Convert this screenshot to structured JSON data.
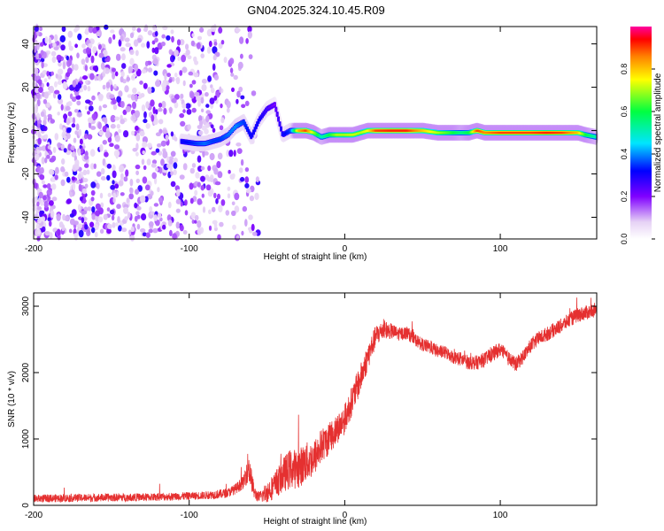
{
  "figure": {
    "title": "GN04.2025.324.10.45.R09"
  },
  "chart_data": [
    {
      "type": "heatmap",
      "title": "GN04.2025.324.10.45.R09",
      "xlabel": "Height of straight line (km)",
      "ylabel": "Frequency (Hz)",
      "xlim": [
        -200,
        162
      ],
      "ylim": [
        -50,
        48
      ],
      "xticks": [
        -200,
        -100,
        0,
        100
      ],
      "xtick_labels": [
        "-200",
        "-100",
        "0",
        "100"
      ],
      "yticks": [
        -40,
        -20,
        0,
        20,
        40
      ],
      "ytick_labels": [
        "-40",
        "-20",
        "0",
        "20",
        "40"
      ],
      "colorbar": {
        "label": "Normalized spectral amplitude",
        "range": [
          0,
          1
        ],
        "ticks": [
          0.0,
          0.2,
          0.4,
          0.6,
          0.8
        ],
        "tick_labels": [
          "0.0",
          "0.2",
          "0.4",
          "0.6",
          "0.8"
        ],
        "colors": [
          "#ffffff",
          "#e6d2f5",
          "#8000ff",
          "#0000ff",
          "#00e5ff",
          "#00ff40",
          "#ffff00",
          "#ff8000",
          "#ff0000",
          "#ff00a0"
        ]
      },
      "noise_region": {
        "x_from": -200,
        "x_to": -55,
        "freq_from": -50,
        "freq_to": 48,
        "level": 0.15
      },
      "ridge": {
        "x": [
          -105,
          -95,
          -90,
          -85,
          -80,
          -75,
          -70,
          -65,
          -60,
          -55,
          -50,
          -45,
          -40,
          -35,
          -30,
          -25,
          -20,
          -15,
          -10,
          -5,
          0,
          5,
          10,
          15,
          20,
          30,
          40,
          50,
          60,
          70,
          75,
          80,
          85,
          90,
          100,
          110,
          120,
          130,
          140,
          150,
          155,
          162
        ],
        "freq": [
          -5,
          -6,
          -6,
          -5,
          -4,
          -2,
          2,
          4,
          -3,
          5,
          10,
          12,
          -2,
          0,
          0,
          0,
          -1,
          -3,
          -2,
          -2,
          -2,
          -2,
          -1,
          0,
          0,
          0,
          0,
          0,
          -1,
          -1,
          -1,
          -1,
          0,
          -1,
          -1,
          -1,
          -1,
          -1,
          -1,
          -1,
          -2,
          -3
        ],
        "amplitude": [
          0.3,
          0.35,
          0.38,
          0.35,
          0.35,
          0.38,
          0.4,
          0.35,
          0.3,
          0.3,
          0.25,
          0.2,
          0.3,
          0.35,
          0.8,
          0.9,
          0.7,
          0.5,
          0.6,
          0.7,
          0.7,
          0.72,
          0.7,
          0.75,
          0.9,
          0.92,
          0.92,
          0.8,
          0.7,
          0.6,
          0.55,
          0.6,
          0.9,
          0.85,
          0.9,
          0.9,
          0.9,
          0.92,
          0.9,
          0.8,
          0.6,
          0.5
        ]
      }
    },
    {
      "type": "line",
      "title": "",
      "xlabel": "Height of straight line (km)",
      "ylabel": "SNR (10 * v/v)",
      "xlim": [
        -200,
        162
      ],
      "ylim": [
        0,
        3200
      ],
      "xticks": [
        -200,
        -100,
        0,
        100
      ],
      "xtick_labels": [
        "-200",
        "-100",
        "0",
        "100"
      ],
      "yticks": [
        0,
        1000,
        2000,
        3000
      ],
      "ytick_labels": [
        "0",
        "1000",
        "2000",
        "3000"
      ],
      "series": [
        {
          "name": "SNR",
          "color": "#e53030",
          "x": [
            -200,
            -180,
            -160,
            -140,
            -120,
            -100,
            -90,
            -80,
            -75,
            -70,
            -65,
            -62,
            -58,
            -55,
            -50,
            -45,
            -40,
            -35,
            -30,
            -25,
            -20,
            -15,
            -10,
            -5,
            0,
            5,
            10,
            15,
            20,
            25,
            30,
            35,
            40,
            45,
            50,
            55,
            60,
            65,
            70,
            75,
            80,
            85,
            90,
            95,
            100,
            105,
            110,
            115,
            120,
            125,
            130,
            135,
            140,
            145,
            150,
            155,
            162
          ],
          "y": [
            100,
            110,
            115,
            120,
            125,
            140,
            150,
            170,
            190,
            250,
            350,
            600,
            180,
            120,
            200,
            300,
            450,
            550,
            550,
            650,
            700,
            900,
            1000,
            1150,
            1300,
            1600,
            1900,
            2250,
            2550,
            2650,
            2620,
            2580,
            2600,
            2500,
            2420,
            2380,
            2320,
            2300,
            2230,
            2200,
            2150,
            2150,
            2200,
            2280,
            2350,
            2220,
            2120,
            2250,
            2420,
            2520,
            2580,
            2650,
            2720,
            2800,
            2870,
            2900,
            2950
          ],
          "noise_amplitude": [
            60,
            60,
            60,
            60,
            60,
            60,
            60,
            70,
            70,
            80,
            100,
            250,
            100,
            80,
            160,
            200,
            260,
            300,
            300,
            300,
            280,
            260,
            240,
            230,
            230,
            230,
            220,
            200,
            170,
            140,
            120,
            100,
            100,
            100,
            100,
            100,
            100,
            100,
            100,
            110,
            110,
            110,
            110,
            110,
            110,
            110,
            110,
            110,
            110,
            110,
            110,
            110,
            110,
            110,
            110,
            110,
            110
          ]
        }
      ]
    }
  ]
}
